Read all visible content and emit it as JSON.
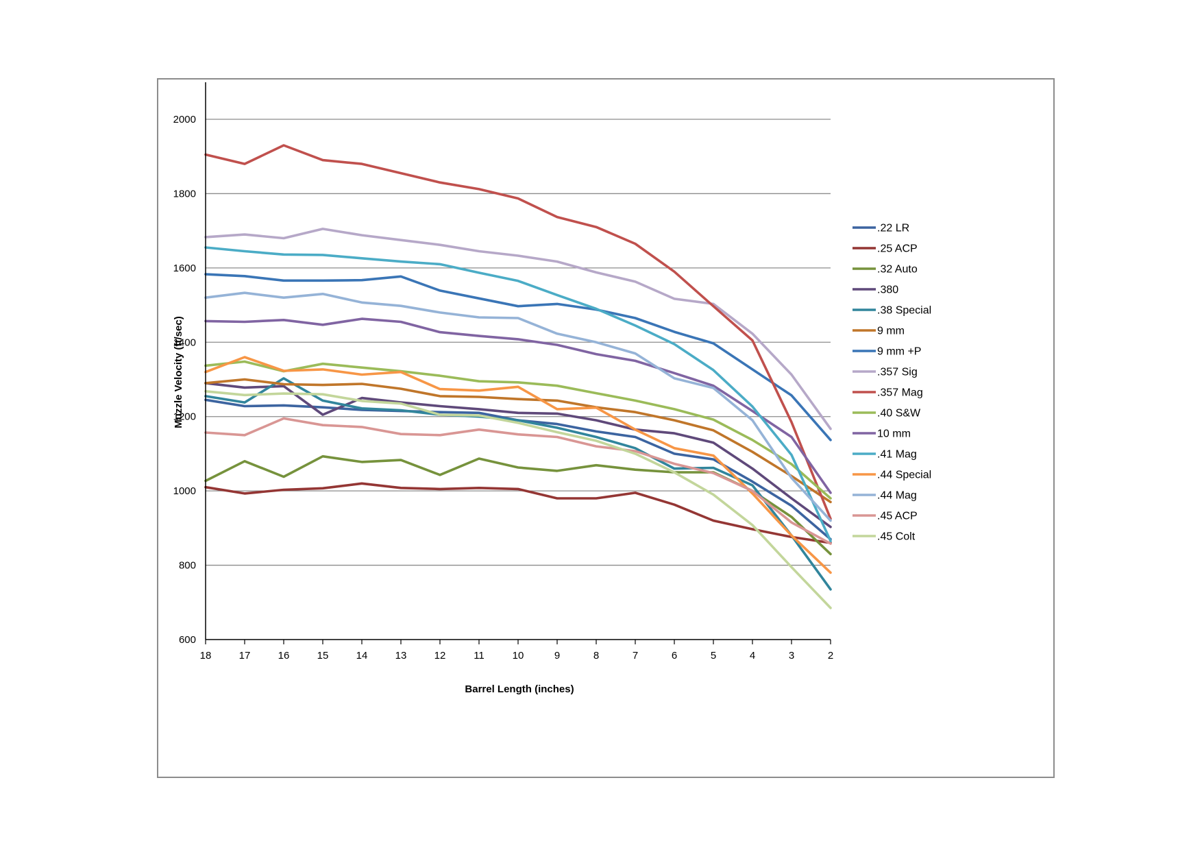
{
  "chart_data": {
    "type": "line",
    "xlabel": "Barrel Length (inches)",
    "ylabel": "Muzzle Velocity (ft/sec)",
    "ylim": [
      600,
      2100
    ],
    "y_ticks": [
      600,
      800,
      1000,
      1200,
      1400,
      1600,
      1800,
      2000
    ],
    "grid": "horizontal",
    "legend_position": "right",
    "categories": [
      "18",
      "17",
      "16",
      "15",
      "14",
      "13",
      "12",
      "11",
      "10",
      "9",
      "8",
      "7",
      "6",
      "5",
      "4",
      "3",
      "2"
    ],
    "series": [
      {
        "name": ".22 LR",
        "color": "#3c64a0",
        "values": [
          1245,
          1228,
          1230,
          1225,
          1218,
          1215,
          1212,
          1210,
          1190,
          1180,
          1160,
          1145,
          1100,
          1085,
          1025,
          960,
          870
        ]
      },
      {
        "name": ".25 ACP",
        "color": "#943634",
        "values": [
          1010,
          993,
          1003,
          1007,
          1020,
          1008,
          1005,
          1008,
          1005,
          980,
          980,
          995,
          963,
          920,
          897,
          876,
          860
        ]
      },
      {
        "name": ".32 Auto",
        "color": "#76923c",
        "values": [
          1027,
          1080,
          1038,
          1093,
          1078,
          1083,
          1043,
          1087,
          1063,
          1054,
          1069,
          1057,
          1050,
          1050,
          1000,
          930,
          830
        ]
      },
      {
        "name": ".380",
        "color": "#5f497a",
        "values": [
          1290,
          1278,
          1282,
          1205,
          1250,
          1238,
          1228,
          1220,
          1210,
          1208,
          1190,
          1165,
          1155,
          1130,
          1060,
          980,
          903
        ]
      },
      {
        "name": ".38 Special",
        "color": "#31859c",
        "values": [
          1255,
          1238,
          1303,
          1243,
          1222,
          1217,
          1205,
          1200,
          1190,
          1170,
          1145,
          1115,
          1060,
          1062,
          1015,
          880,
          735
        ]
      },
      {
        "name": "9 mm",
        "color": "#c0762a",
        "values": [
          1290,
          1300,
          1287,
          1285,
          1288,
          1275,
          1255,
          1253,
          1247,
          1243,
          1225,
          1212,
          1190,
          1163,
          1105,
          1040,
          970
        ]
      },
      {
        "name": "9 mm +P",
        "color": "#3a75b6",
        "values": [
          1583,
          1578,
          1566,
          1566,
          1567,
          1577,
          1539,
          1518,
          1497,
          1503,
          1488,
          1465,
          1428,
          1397,
          1327,
          1257,
          1137
        ]
      },
      {
        "name": ".357 Sig",
        "color": "#b6a8c8",
        "values": [
          1683,
          1690,
          1680,
          1705,
          1688,
          1675,
          1662,
          1645,
          1633,
          1617,
          1588,
          1563,
          1517,
          1503,
          1423,
          1313,
          1167
        ]
      },
      {
        "name": ".357 Mag",
        "color": "#c0504d",
        "values": [
          1905,
          1880,
          1930,
          1890,
          1880,
          1855,
          1830,
          1812,
          1787,
          1737,
          1710,
          1665,
          1590,
          1497,
          1405,
          1185,
          925
        ]
      },
      {
        "name": ".40 S&W",
        "color": "#9bbb59",
        "values": [
          1337,
          1348,
          1322,
          1342,
          1332,
          1322,
          1310,
          1295,
          1292,
          1283,
          1263,
          1243,
          1220,
          1192,
          1137,
          1072,
          980
        ]
      },
      {
        "name": "10 mm",
        "color": "#8064a2",
        "values": [
          1457,
          1455,
          1460,
          1447,
          1463,
          1455,
          1427,
          1417,
          1408,
          1393,
          1368,
          1350,
          1317,
          1283,
          1215,
          1145,
          995
        ]
      },
      {
        "name": ".41 Mag",
        "color": "#4bacc6",
        "values": [
          1655,
          1645,
          1636,
          1635,
          1626,
          1617,
          1610,
          1587,
          1565,
          1527,
          1490,
          1445,
          1395,
          1325,
          1227,
          1097,
          865
        ]
      },
      {
        "name": ".44 Special",
        "color": "#f79646",
        "values": [
          1320,
          1360,
          1323,
          1327,
          1313,
          1320,
          1274,
          1270,
          1280,
          1220,
          1224,
          1165,
          1115,
          1095,
          993,
          880,
          780
        ]
      },
      {
        "name": ".44 Mag",
        "color": "#95b3d7",
        "values": [
          1520,
          1533,
          1520,
          1530,
          1507,
          1498,
          1480,
          1467,
          1465,
          1423,
          1400,
          1370,
          1303,
          1277,
          1190,
          1035,
          920
        ]
      },
      {
        "name": ".45 ACP",
        "color": "#d99694",
        "values": [
          1157,
          1150,
          1195,
          1177,
          1172,
          1153,
          1150,
          1165,
          1152,
          1145,
          1120,
          1107,
          1073,
          1048,
          1000,
          915,
          858
        ]
      },
      {
        "name": ".45 Colt",
        "color": "#c3d69b",
        "values": [
          1268,
          1258,
          1262,
          1260,
          1242,
          1235,
          1205,
          1203,
          1183,
          1158,
          1135,
          1100,
          1050,
          990,
          908,
          795,
          685
        ]
      }
    ]
  }
}
